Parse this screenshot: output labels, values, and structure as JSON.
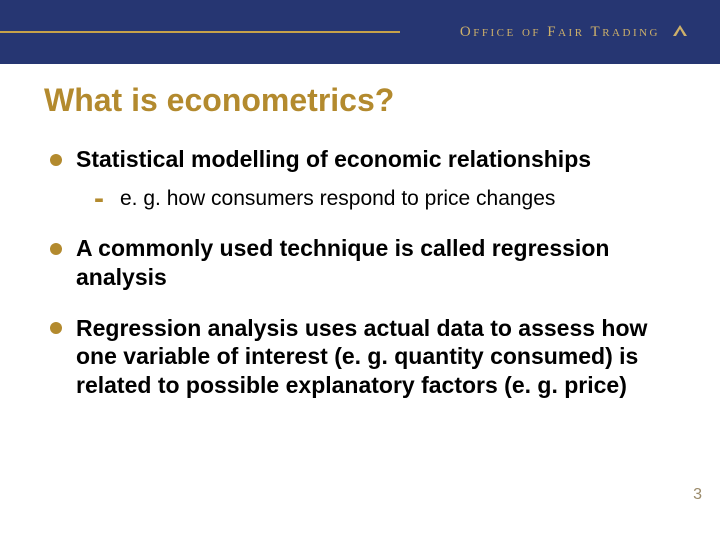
{
  "colors": {
    "header_bg": "#263672",
    "accent": "#c6a24a",
    "title": "#b38a2e",
    "bullet": "#b38a2e",
    "logo_text": "#cdb06a",
    "page_num": "#9a8a6a"
  },
  "header": {
    "logo_text_html": "O<span class='sc'>ffice of</span> F<span class='sc'>air</span> T<span class='sc'>rading</span>"
  },
  "slide": {
    "title": "What is econometrics?",
    "bullets": [
      {
        "text": "Statistical modelling of economic relationships",
        "sub": [
          "e. g. how consumers respond to price changes"
        ]
      },
      {
        "text": "A commonly used technique is called regression analysis"
      },
      {
        "text": "Regression analysis uses actual data to assess how one variable of interest (e. g. quantity consumed) is related to possible explanatory factors (e. g. price)"
      }
    ],
    "page_number": "3"
  },
  "typography": {
    "title_fontsize": 32,
    "bullet_fontsize": 23,
    "sub_fontsize": 21,
    "logo_fontsize": 15
  }
}
